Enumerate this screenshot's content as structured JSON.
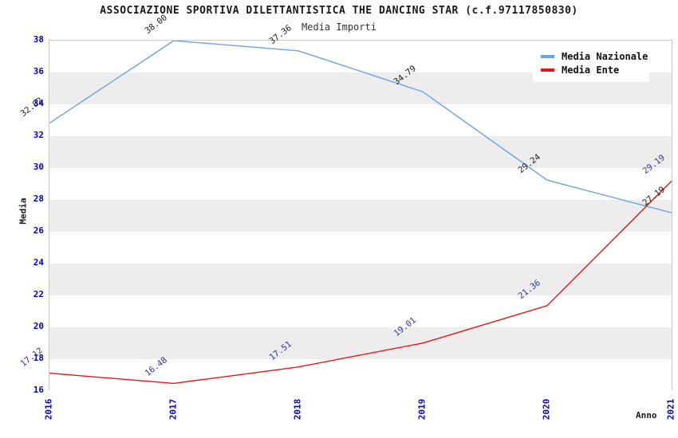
{
  "header": {
    "title": "ASSOCIAZIONE SPORTIVA DILETTANTISTICA THE DANCING STAR (c.f.97117850830)",
    "subtitle": "Media Importi"
  },
  "chart_data": {
    "type": "line",
    "title": "ASSOCIAZIONE SPORTIVA DILETTANTISTICA THE DANCING STAR (c.f.97117850830)",
    "subtitle": "Media Importi",
    "x": [
      "2016",
      "2017",
      "2018",
      "2019",
      "2020",
      "2021"
    ],
    "series": [
      {
        "name": "Media Nazionale",
        "color": "#6ba3e0",
        "label_color": "#1a1a1a",
        "values": [
          32.82,
          38.0,
          37.36,
          34.79,
          29.24,
          27.19
        ]
      },
      {
        "name": "Media Ente",
        "color": "#e01818",
        "label_color": "#333399",
        "values": [
          17.12,
          16.48,
          17.51,
          19.01,
          21.36,
          29.19
        ]
      }
    ],
    "xlabel": "Anno",
    "ylabel": "Media",
    "ylim": [
      16,
      38
    ],
    "ytick_step": 2,
    "value_decimals": 2,
    "legend_position": "top-right",
    "grid_bands": true,
    "band_color": "#ededed",
    "axis_tick_color": "#0000cc"
  }
}
